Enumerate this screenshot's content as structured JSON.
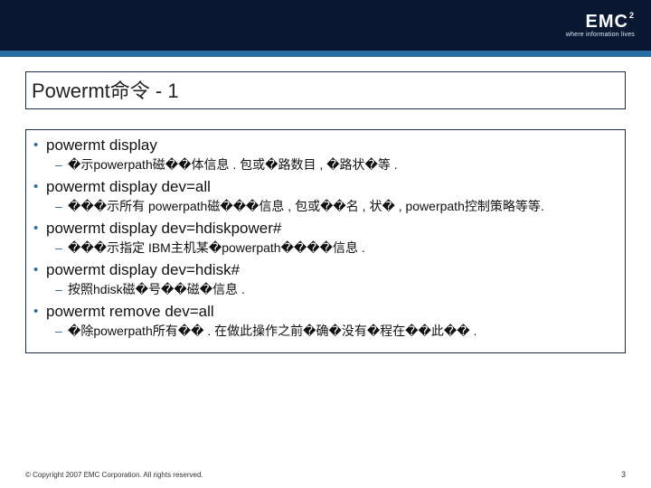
{
  "colors": {
    "header_bg": "#0a1832",
    "accent": "#2b6ca3",
    "border": "#1a2c4a",
    "text": "#111111"
  },
  "logo": {
    "main": "EMC",
    "sup": "2",
    "tag": "where information lives"
  },
  "title": "Powermt命令 - 1",
  "items": [
    {
      "title": "powermt display",
      "desc": "�示powerpath磁��体信息 . 包或�路数目 , �路状�等 ."
    },
    {
      "title": "powermt display dev=all",
      "desc": "���示所有 powerpath磁���信息 , 包或��名 , 状� , powerpath控制策略等等."
    },
    {
      "title": "powermt display dev=hdiskpower#",
      "desc": "���示指定 IBM主机某�powerpath����信息 ."
    },
    {
      "title": "powermt display dev=hdisk#",
      "desc": "按照hdisk磁�号��磁�信息 ."
    },
    {
      "title": "powermt remove dev=all",
      "desc": "�除powerpath所有�� . 在做此操作之前�确�没有�程在��此�� ."
    }
  ],
  "footer": {
    "copyright": "© Copyright 2007 EMC Corporation. All rights reserved.",
    "page": "3"
  }
}
